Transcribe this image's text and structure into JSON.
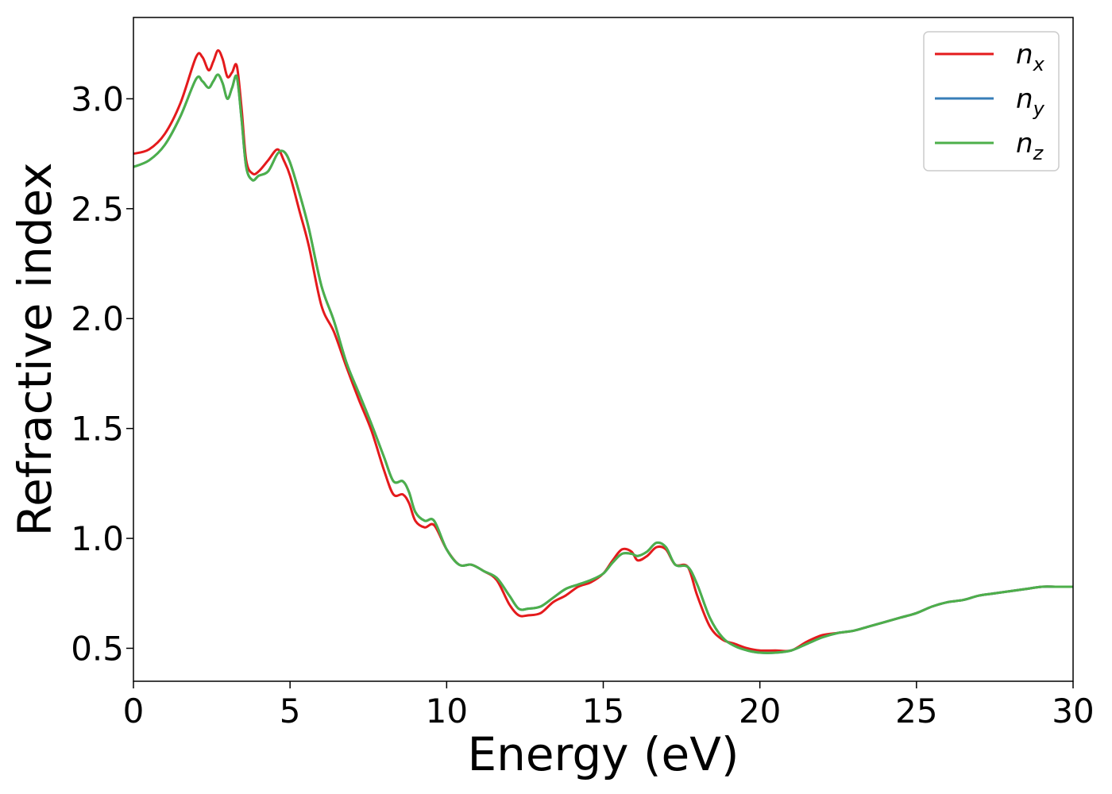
{
  "chart_data": {
    "type": "line",
    "title": "",
    "xlabel": "Energy (eV)",
    "ylabel": "Refractive index",
    "xlim": [
      0,
      30
    ],
    "ylim": [
      0.35,
      3.37
    ],
    "xticks": [
      0,
      5,
      10,
      15,
      20,
      25,
      30
    ],
    "yticks": [
      0.5,
      1.0,
      1.5,
      2.0,
      2.5,
      3.0
    ],
    "xtick_labels": [
      "0",
      "5",
      "10",
      "15",
      "20",
      "25",
      "30"
    ],
    "ytick_labels": [
      "0.5",
      "1.0",
      "1.5",
      "2.0",
      "2.5",
      "3.0"
    ],
    "grid": false,
    "legend_position": "top-right",
    "series": [
      {
        "name": "n_x",
        "label_main": "n",
        "label_sub": "x",
        "color": "#e41a1c",
        "x": [
          0,
          0.5,
          1,
          1.5,
          2,
          2.2,
          2.4,
          2.55,
          2.7,
          2.85,
          3.0,
          3.15,
          3.3,
          3.45,
          3.6,
          3.8,
          4,
          4.3,
          4.6,
          4.8,
          5,
          5.3,
          5.6,
          6,
          6.4,
          6.8,
          7.2,
          7.6,
          8,
          8.3,
          8.6,
          8.8,
          9,
          9.3,
          9.6,
          10,
          10.4,
          10.8,
          11.2,
          11.6,
          12,
          12.3,
          12.6,
          13,
          13.4,
          13.8,
          14.2,
          14.6,
          15,
          15.3,
          15.6,
          15.9,
          16.1,
          16.4,
          16.7,
          17,
          17.3,
          17.7,
          18,
          18.4,
          18.8,
          19.2,
          19.6,
          20,
          20.5,
          21,
          21.5,
          22,
          22.5,
          23,
          23.5,
          24,
          24.5,
          25,
          25.5,
          26,
          26.5,
          27,
          27.5,
          28,
          28.5,
          29,
          29.5,
          30
        ],
        "y": [
          2.75,
          2.77,
          2.84,
          2.98,
          3.19,
          3.19,
          3.13,
          3.17,
          3.22,
          3.18,
          3.1,
          3.12,
          3.15,
          2.96,
          2.72,
          2.66,
          2.67,
          2.72,
          2.77,
          2.72,
          2.65,
          2.49,
          2.33,
          2.06,
          1.94,
          1.78,
          1.63,
          1.49,
          1.31,
          1.2,
          1.2,
          1.16,
          1.08,
          1.05,
          1.06,
          0.95,
          0.88,
          0.88,
          0.85,
          0.81,
          0.7,
          0.65,
          0.65,
          0.66,
          0.71,
          0.74,
          0.78,
          0.8,
          0.84,
          0.9,
          0.95,
          0.94,
          0.9,
          0.92,
          0.96,
          0.95,
          0.88,
          0.87,
          0.74,
          0.6,
          0.54,
          0.52,
          0.5,
          0.49,
          0.49,
          0.49,
          0.53,
          0.56,
          0.57,
          0.58,
          0.6,
          0.62,
          0.64,
          0.66,
          0.69,
          0.71,
          0.72,
          0.74,
          0.75,
          0.76,
          0.77,
          0.78,
          0.78,
          0.78
        ]
      },
      {
        "name": "n_y",
        "label_main": "n",
        "label_sub": "y",
        "color": "#377eb8",
        "x": [
          0,
          0.5,
          1,
          1.5,
          2,
          2.2,
          2.4,
          2.55,
          2.7,
          2.85,
          3.0,
          3.15,
          3.3,
          3.45,
          3.6,
          3.8,
          4,
          4.3,
          4.6,
          4.8,
          5,
          5.3,
          5.6,
          6,
          6.4,
          6.8,
          7.2,
          7.6,
          8,
          8.3,
          8.6,
          8.8,
          9,
          9.3,
          9.6,
          10,
          10.4,
          10.8,
          11.2,
          11.6,
          12,
          12.3,
          12.6,
          13,
          13.4,
          13.8,
          14.2,
          14.6,
          15,
          15.3,
          15.6,
          15.9,
          16.1,
          16.4,
          16.7,
          17,
          17.3,
          17.7,
          18,
          18.4,
          18.8,
          19.2,
          19.6,
          20,
          20.5,
          21,
          21.5,
          22,
          22.5,
          23,
          23.5,
          24,
          24.5,
          25,
          25.5,
          26,
          26.5,
          27,
          27.5,
          28,
          28.5,
          29,
          29.5,
          30
        ],
        "y": [
          2.69,
          2.72,
          2.79,
          2.92,
          3.09,
          3.08,
          3.05,
          3.08,
          3.11,
          3.07,
          3.0,
          3.05,
          3.1,
          2.91,
          2.69,
          2.63,
          2.65,
          2.67,
          2.75,
          2.76,
          2.71,
          2.57,
          2.41,
          2.15,
          1.99,
          1.8,
          1.66,
          1.52,
          1.37,
          1.26,
          1.26,
          1.21,
          1.12,
          1.08,
          1.08,
          0.95,
          0.88,
          0.88,
          0.85,
          0.82,
          0.74,
          0.68,
          0.68,
          0.69,
          0.73,
          0.77,
          0.79,
          0.81,
          0.84,
          0.89,
          0.93,
          0.93,
          0.92,
          0.94,
          0.98,
          0.96,
          0.88,
          0.87,
          0.79,
          0.64,
          0.55,
          0.51,
          0.49,
          0.48,
          0.48,
          0.49,
          0.52,
          0.55,
          0.57,
          0.58,
          0.6,
          0.62,
          0.64,
          0.66,
          0.69,
          0.71,
          0.72,
          0.74,
          0.75,
          0.76,
          0.77,
          0.78,
          0.78,
          0.78
        ]
      },
      {
        "name": "n_z",
        "label_main": "n",
        "label_sub": "z",
        "color": "#4daf4a",
        "x": [
          0,
          0.5,
          1,
          1.5,
          2,
          2.2,
          2.4,
          2.55,
          2.7,
          2.85,
          3.0,
          3.15,
          3.3,
          3.45,
          3.6,
          3.8,
          4,
          4.3,
          4.6,
          4.8,
          5,
          5.3,
          5.6,
          6,
          6.4,
          6.8,
          7.2,
          7.6,
          8,
          8.3,
          8.6,
          8.8,
          9,
          9.3,
          9.6,
          10,
          10.4,
          10.8,
          11.2,
          11.6,
          12,
          12.3,
          12.6,
          13,
          13.4,
          13.8,
          14.2,
          14.6,
          15,
          15.3,
          15.6,
          15.9,
          16.1,
          16.4,
          16.7,
          17,
          17.3,
          17.7,
          18,
          18.4,
          18.8,
          19.2,
          19.6,
          20,
          20.5,
          21,
          21.5,
          22,
          22.5,
          23,
          23.5,
          24,
          24.5,
          25,
          25.5,
          26,
          26.5,
          27,
          27.5,
          28,
          28.5,
          29,
          29.5,
          30
        ],
        "y": [
          2.69,
          2.72,
          2.79,
          2.92,
          3.09,
          3.08,
          3.05,
          3.08,
          3.11,
          3.07,
          3.0,
          3.05,
          3.1,
          2.91,
          2.69,
          2.63,
          2.65,
          2.67,
          2.75,
          2.76,
          2.71,
          2.57,
          2.41,
          2.15,
          1.99,
          1.8,
          1.66,
          1.52,
          1.37,
          1.26,
          1.26,
          1.21,
          1.12,
          1.08,
          1.08,
          0.95,
          0.88,
          0.88,
          0.85,
          0.82,
          0.74,
          0.68,
          0.68,
          0.69,
          0.73,
          0.77,
          0.79,
          0.81,
          0.84,
          0.89,
          0.93,
          0.93,
          0.92,
          0.94,
          0.98,
          0.96,
          0.88,
          0.87,
          0.79,
          0.64,
          0.55,
          0.51,
          0.49,
          0.48,
          0.48,
          0.49,
          0.52,
          0.55,
          0.57,
          0.58,
          0.6,
          0.62,
          0.64,
          0.66,
          0.69,
          0.71,
          0.72,
          0.74,
          0.75,
          0.76,
          0.77,
          0.78,
          0.78,
          0.78
        ]
      }
    ]
  }
}
